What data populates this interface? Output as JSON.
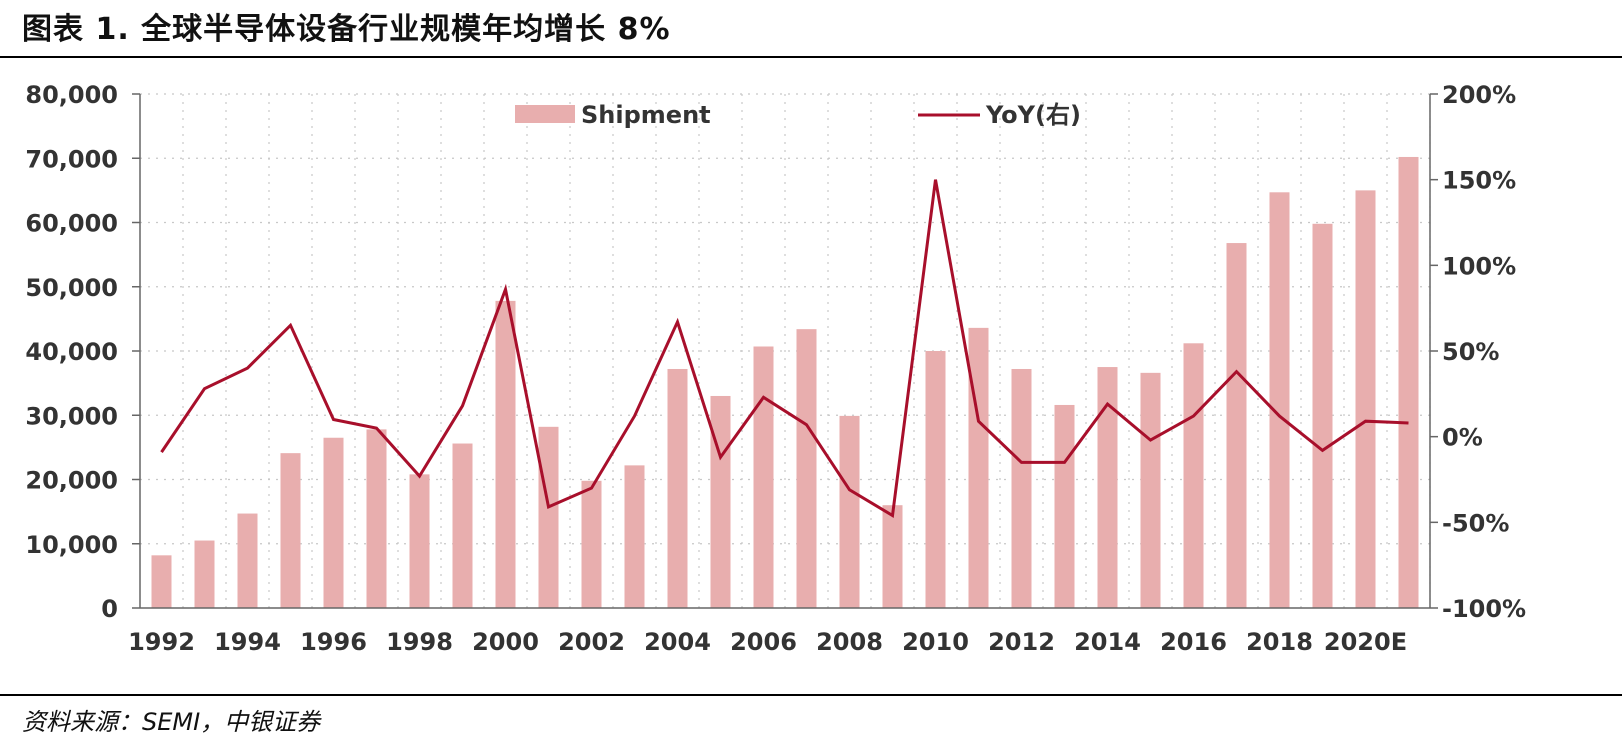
{
  "header": {
    "title": "图表 1. 全球半导体设备行业规模年均增长 8%"
  },
  "footer": {
    "source": "资料来源：SEMI，中银证券"
  },
  "chart_data": {
    "type": "bar+line",
    "categories": [
      "1992",
      "1993",
      "1994",
      "1995",
      "1996",
      "1997",
      "1998",
      "1999",
      "2000",
      "2001",
      "2002",
      "2003",
      "2004",
      "2005",
      "2006",
      "2007",
      "2008",
      "2009",
      "2010",
      "2011",
      "2012",
      "2013",
      "2014",
      "2015",
      "2016",
      "2017",
      "2018",
      "2019",
      "2020E",
      "2021E"
    ],
    "x_tick_labels": [
      "1992",
      "1994",
      "1996",
      "1998",
      "2000",
      "2002",
      "2004",
      "2006",
      "2008",
      "2010",
      "2012",
      "2014",
      "2016",
      "2018",
      "2020E"
    ],
    "series": [
      {
        "name": "Shipment",
        "type": "bar",
        "axis": "left",
        "color": "#e8aeae",
        "values": [
          8200,
          10500,
          14700,
          24100,
          26500,
          27800,
          20800,
          25600,
          47800,
          28200,
          19800,
          22200,
          37200,
          33000,
          40700,
          43400,
          29900,
          16000,
          40000,
          43600,
          37200,
          31600,
          37500,
          36600,
          41200,
          56800,
          64700,
          59800,
          65000,
          70200
        ]
      },
      {
        "name": "YoY(右)",
        "type": "line",
        "axis": "right",
        "color": "#a80f2b",
        "values": [
          -9,
          28,
          40,
          65,
          10,
          5,
          -23,
          18,
          86,
          -41,
          -30,
          12,
          67,
          -12,
          23,
          7,
          -31,
          -46,
          150,
          9,
          -15,
          -15,
          19,
          -2,
          12,
          38,
          12,
          -8,
          9,
          8
        ]
      }
    ],
    "y_left": {
      "min": 0,
      "max": 80000,
      "ticks": [
        "0",
        "10,000",
        "20,000",
        "30,000",
        "40,000",
        "50,000",
        "60,000",
        "70,000",
        "80,000"
      ]
    },
    "y_right": {
      "min": -100,
      "max": 200,
      "ticks": [
        "-100%",
        "-50%",
        "0%",
        "50%",
        "100%",
        "150%",
        "200%"
      ]
    },
    "grid": "dotted",
    "legend_placement": "top"
  }
}
